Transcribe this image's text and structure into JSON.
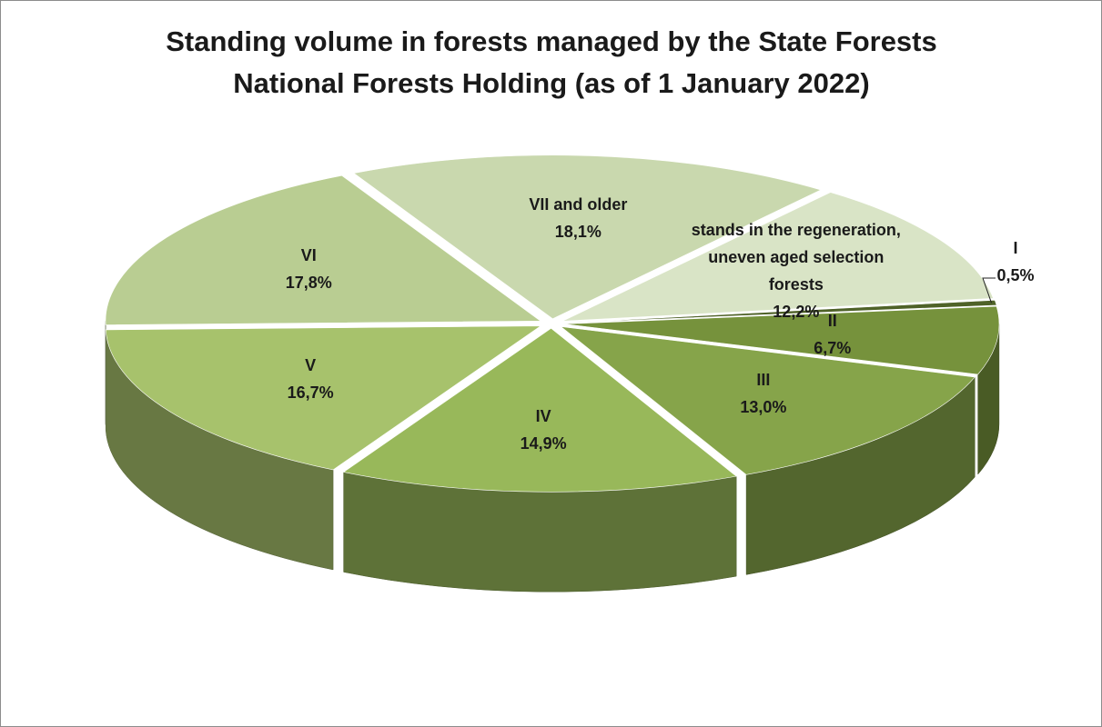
{
  "chart_data": {
    "type": "pie",
    "title": "Standing volume in forests managed by the State Forests National Forests Holding (as of 1 January 2022)",
    "categories": [
      "I",
      "II",
      "III",
      "IV",
      "V",
      "VI",
      "VII and older",
      "stands in the regeneration, uneven aged selection forests"
    ],
    "values": [
      0.5,
      6.7,
      13.0,
      14.9,
      16.7,
      17.8,
      18.1,
      12.2
    ],
    "value_labels": [
      "0,5%",
      "6,7%",
      "13,0%",
      "14,9%",
      "16,7%",
      "17,8%",
      "18,1%",
      "12,2%"
    ],
    "colors": [
      "#4f6228",
      "#76923c",
      "#86a44a",
      "#98b85a",
      "#a7c26c",
      "#b9cd92",
      "#c9d8ae",
      "#d9e4c6"
    ]
  }
}
